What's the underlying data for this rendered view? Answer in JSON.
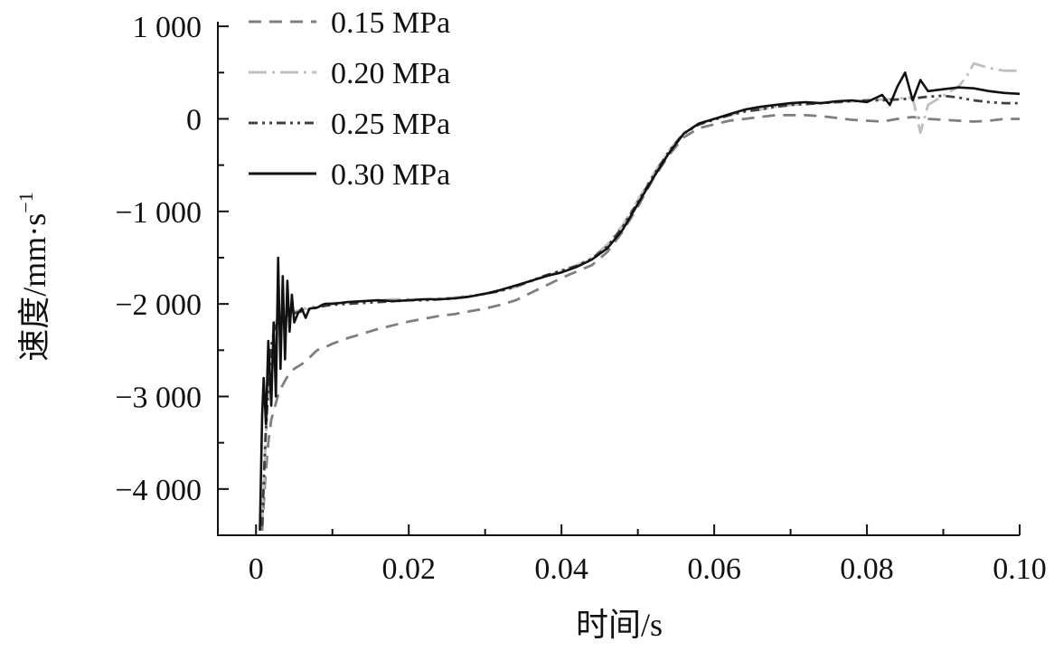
{
  "chart_data": {
    "type": "line",
    "xlabel": "时间/s",
    "ylabel": "速度/mm·s",
    "ylabel_sup": "−1",
    "xlim": [
      -0.005,
      0.1
    ],
    "ylim": [
      -4500,
      1050
    ],
    "xticks": [
      0,
      0.02,
      0.04,
      0.06,
      0.08,
      0.1
    ],
    "xtick_labels": [
      "0",
      "0.02",
      "0.04",
      "0.06",
      "0.08",
      "0.10"
    ],
    "yticks": [
      1000,
      0,
      -1000,
      -2000,
      -3000,
      -4000
    ],
    "ytick_labels": [
      "1 000",
      "0",
      "−1 000",
      "−2 000",
      "−3 000",
      "−4 000"
    ],
    "legend_position": "top-left",
    "series": [
      {
        "name": "0.15 MPa",
        "color": "#7f7f7f",
        "dash": "14,9",
        "x": [
          0.0008,
          0.0012,
          0.0016,
          0.002,
          0.0025,
          0.003,
          0.004,
          0.005,
          0.006,
          0.007,
          0.008,
          0.009,
          0.01,
          0.012,
          0.014,
          0.016,
          0.018,
          0.02,
          0.022,
          0.024,
          0.026,
          0.028,
          0.03,
          0.032,
          0.034,
          0.036,
          0.038,
          0.04,
          0.042,
          0.044,
          0.046,
          0.048,
          0.05,
          0.052,
          0.054,
          0.056,
          0.058,
          0.06,
          0.062,
          0.064,
          0.066,
          0.068,
          0.07,
          0.072,
          0.074,
          0.076,
          0.078,
          0.08,
          0.082,
          0.084,
          0.086,
          0.088,
          0.09,
          0.092,
          0.094,
          0.096,
          0.098,
          0.1
        ],
        "y": [
          -4450,
          -3900,
          -3500,
          -3250,
          -3100,
          -2950,
          -2800,
          -2700,
          -2650,
          -2580,
          -2500,
          -2470,
          -2430,
          -2370,
          -2320,
          -2270,
          -2230,
          -2190,
          -2160,
          -2130,
          -2110,
          -2080,
          -2050,
          -2010,
          -1960,
          -1880,
          -1800,
          -1720,
          -1650,
          -1580,
          -1440,
          -1220,
          -950,
          -650,
          -400,
          -200,
          -100,
          -60,
          -20,
          0,
          20,
          40,
          40,
          40,
          30,
          10,
          -10,
          -20,
          -30,
          0,
          20,
          0,
          -10,
          -20,
          -30,
          -20,
          0,
          0
        ]
      },
      {
        "name": "0.20 MPa",
        "color": "#bfbfbf",
        "dash": "20,6,3,6",
        "x": [
          0.0008,
          0.0012,
          0.0016,
          0.002,
          0.0025,
          0.003,
          0.004,
          0.005,
          0.006,
          0.007,
          0.008,
          0.009,
          0.01,
          0.012,
          0.014,
          0.016,
          0.018,
          0.02,
          0.022,
          0.024,
          0.026,
          0.028,
          0.03,
          0.032,
          0.034,
          0.036,
          0.038,
          0.04,
          0.042,
          0.044,
          0.046,
          0.048,
          0.05,
          0.052,
          0.054,
          0.056,
          0.058,
          0.06,
          0.062,
          0.064,
          0.066,
          0.068,
          0.07,
          0.072,
          0.074,
          0.076,
          0.078,
          0.08,
          0.082,
          0.084,
          0.086,
          0.087,
          0.088,
          0.09,
          0.092,
          0.093,
          0.094,
          0.096,
          0.098,
          0.1
        ],
        "y": [
          -4400,
          -3600,
          -2900,
          -2450,
          -2200,
          -2150,
          -2120,
          -2080,
          -2060,
          -2040,
          -2020,
          -2000,
          -1990,
          -1980,
          -1970,
          -1960,
          -1950,
          -1950,
          -1950,
          -1940,
          -1930,
          -1910,
          -1890,
          -1860,
          -1820,
          -1760,
          -1700,
          -1640,
          -1580,
          -1500,
          -1360,
          -1150,
          -880,
          -600,
          -350,
          -150,
          -50,
          0,
          40,
          80,
          100,
          130,
          150,
          160,
          170,
          180,
          190,
          200,
          210,
          220,
          230,
          -150,
          150,
          250,
          350,
          450,
          600,
          550,
          520,
          520
        ]
      },
      {
        "name": "0.25 MPa",
        "color": "#404040",
        "dash": "10,5,3,5,3,5",
        "x": [
          0.0008,
          0.0012,
          0.0016,
          0.002,
          0.0025,
          0.003,
          0.004,
          0.005,
          0.006,
          0.007,
          0.008,
          0.009,
          0.01,
          0.012,
          0.014,
          0.016,
          0.018,
          0.02,
          0.022,
          0.024,
          0.026,
          0.028,
          0.03,
          0.032,
          0.034,
          0.036,
          0.038,
          0.04,
          0.042,
          0.044,
          0.046,
          0.048,
          0.05,
          0.052,
          0.054,
          0.056,
          0.058,
          0.06,
          0.062,
          0.064,
          0.066,
          0.068,
          0.07,
          0.072,
          0.074,
          0.076,
          0.078,
          0.08,
          0.082,
          0.084,
          0.086,
          0.088,
          0.09,
          0.092,
          0.094,
          0.096,
          0.098,
          0.1
        ],
        "y": [
          -4400,
          -3500,
          -2900,
          -2450,
          -2250,
          -2180,
          -2130,
          -2100,
          -2080,
          -2060,
          -2040,
          -2020,
          -2010,
          -2000,
          -1990,
          -1980,
          -1970,
          -1960,
          -1960,
          -1950,
          -1940,
          -1920,
          -1890,
          -1860,
          -1810,
          -1750,
          -1690,
          -1640,
          -1590,
          -1510,
          -1380,
          -1170,
          -900,
          -620,
          -360,
          -160,
          -60,
          -10,
          40,
          80,
          100,
          130,
          150,
          160,
          170,
          180,
          190,
          200,
          200,
          210,
          220,
          240,
          250,
          230,
          200,
          180,
          170,
          170
        ]
      },
      {
        "name": "0.30 MPa",
        "color": "#111111",
        "dash": "",
        "x": [
          0.0005,
          0.0008,
          0.001,
          0.0013,
          0.0016,
          0.002,
          0.0023,
          0.0026,
          0.0029,
          0.0032,
          0.0035,
          0.0038,
          0.0041,
          0.0044,
          0.0047,
          0.005,
          0.0055,
          0.006,
          0.0065,
          0.007,
          0.008,
          0.009,
          0.01,
          0.012,
          0.014,
          0.016,
          0.018,
          0.02,
          0.022,
          0.024,
          0.026,
          0.028,
          0.03,
          0.032,
          0.034,
          0.036,
          0.038,
          0.04,
          0.042,
          0.044,
          0.046,
          0.048,
          0.05,
          0.052,
          0.054,
          0.056,
          0.058,
          0.06,
          0.062,
          0.064,
          0.066,
          0.068,
          0.07,
          0.072,
          0.074,
          0.076,
          0.078,
          0.08,
          0.082,
          0.083,
          0.084,
          0.085,
          0.086,
          0.087,
          0.088,
          0.09,
          0.092,
          0.094,
          0.096,
          0.098,
          0.1
        ],
        "y": [
          -4450,
          -3200,
          -2800,
          -3300,
          -2400,
          -3100,
          -2200,
          -3000,
          -1500,
          -2700,
          -1700,
          -2600,
          -1750,
          -2300,
          -1900,
          -2200,
          -2100,
          -2050,
          -2150,
          -2050,
          -2040,
          -2000,
          -2000,
          -1980,
          -1970,
          -1960,
          -1970,
          -1960,
          -1950,
          -1950,
          -1940,
          -1920,
          -1890,
          -1850,
          -1800,
          -1750,
          -1700,
          -1660,
          -1600,
          -1520,
          -1400,
          -1200,
          -920,
          -640,
          -380,
          -160,
          -50,
          0,
          50,
          100,
          130,
          150,
          170,
          180,
          170,
          190,
          200,
          180,
          260,
          150,
          350,
          500,
          200,
          420,
          300,
          320,
          340,
          330,
          300,
          280,
          270
        ]
      }
    ]
  }
}
